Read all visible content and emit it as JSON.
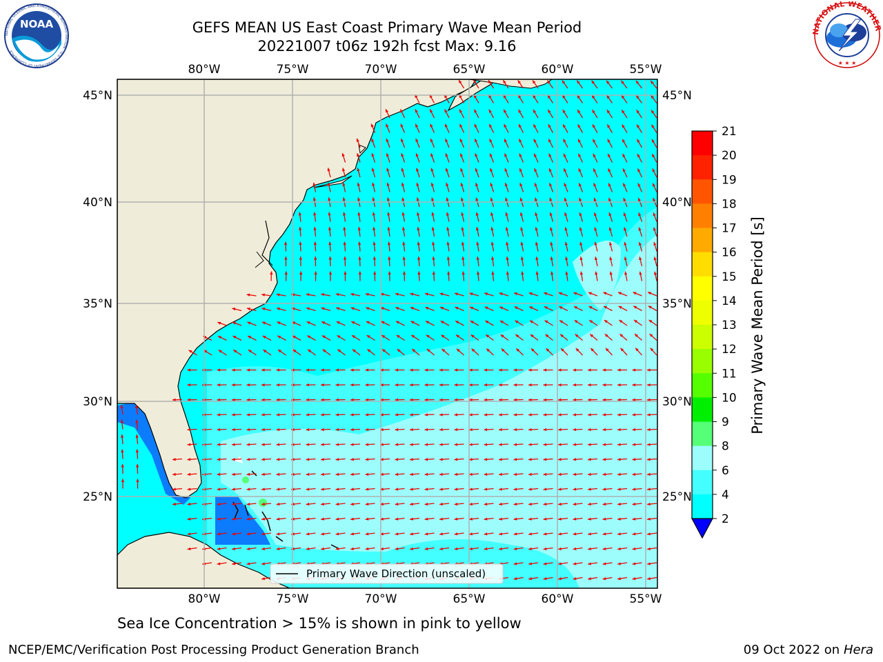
{
  "header": {
    "title": "GEFS MEAN US East Coast Primary Wave Mean Period",
    "subtitle": "20221007 t06z 192h fcst   Max: 9.16",
    "noaa_logo_text": "NOAA",
    "noaa_ring_text": "NATIONAL OCEANIC AND ATMOSPHERIC ADMINISTRATION · U.S. DEPARTMENT OF COMMERCE",
    "nws_ring_text": "NATIONAL WEATHER SERVICE"
  },
  "map": {
    "lon_labels_top": [
      "80°W",
      "75°W",
      "70°W",
      "65°W",
      "60°W",
      "55°W"
    ],
    "lon_labels_bottom": [
      "80°W",
      "75°W",
      "70°W",
      "65°W",
      "60°W",
      "55°W"
    ],
    "lat_labels_left": [
      "45°N",
      "40°N",
      "35°N",
      "30°N",
      "25°N"
    ],
    "lat_labels_right": [
      "45°N",
      "40°N",
      "35°N",
      "30°N",
      "25°N"
    ],
    "legend_label": "Primary Wave Direction (unscaled)",
    "colors": {
      "land": "#efedd9",
      "water_4_6": "#00ffff",
      "water_6_8": "#44ffff",
      "water_8_9": "#9dfdfd",
      "water_2_4": "#0c7cfc",
      "arrow": "#ee0000",
      "grid": "#b0b0b0"
    }
  },
  "colorbar": {
    "label": "Primary Wave Mean Period [s]",
    "ticks": [
      "21",
      "20",
      "19",
      "18",
      "17",
      "16",
      "15",
      "14",
      "13",
      "12",
      "11",
      "10",
      "9",
      "8",
      "6",
      "4",
      "2"
    ],
    "colors": [
      "#ff0000",
      "#ff2200",
      "#ff5500",
      "#ff8000",
      "#ffaa00",
      "#ffdd00",
      "#ffff00",
      "#eeff00",
      "#ccff00",
      "#99ff00",
      "#55ff00",
      "#00ee00",
      "#55ff77",
      "#9dfdfd",
      "#44ffff",
      "#00ffff",
      "#0c7cfc"
    ],
    "extend_color": "#0000ff"
  },
  "caption": "Sea Ice Concentration > 15% is shown in pink to yellow",
  "footer": {
    "left": "NCEP/EMC/Verification Post Processing Product Generation Branch",
    "date": "09 Oct 2022 on ",
    "machine": "Hera"
  }
}
